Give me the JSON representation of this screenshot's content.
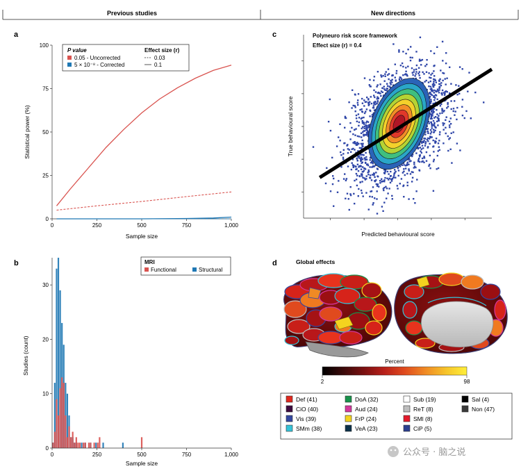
{
  "headers": {
    "left": "Previous studies",
    "right": "New directions"
  },
  "panels": {
    "a": "a",
    "b": "b",
    "c": "c",
    "d": "d"
  },
  "chart_data": [
    {
      "id": "a",
      "type": "line",
      "xlabel": "Sample size",
      "ylabel": "Statistical power (%)",
      "xlim": [
        0,
        1000
      ],
      "ylim": [
        0,
        100
      ],
      "xticks": [
        0,
        250,
        500,
        750,
        1000
      ],
      "xtick_labels": [
        "0",
        "250",
        "500",
        "750",
        "1,000"
      ],
      "yticks": [
        0,
        25,
        50,
        75,
        100
      ],
      "ytick_labels": [
        "0",
        "25",
        "50",
        "75",
        "100"
      ],
      "legend": {
        "pvalue_title": "P value",
        "pvalue_items": [
          {
            "label": "0.05 - Uncorrected",
            "color": "#d9534f"
          },
          {
            "label": "5 × 10⁻⁸ - Corrected",
            "color": "#1f78b4"
          }
        ],
        "effect_title": "Effect size (r)",
        "effect_items": [
          {
            "label": "0.03",
            "style": "dashed"
          },
          {
            "label": "0.1",
            "style": "solid"
          }
        ]
      },
      "series": [
        {
          "name": "0.05 - Uncorrected, r = 0.1",
          "color": "#d9534f",
          "style": "solid",
          "x": [
            25,
            100,
            200,
            300,
            400,
            500,
            600,
            700,
            800,
            900,
            1000
          ],
          "y": [
            7.5,
            17,
            29,
            41,
            51.5,
            61,
            69,
            75.5,
            81,
            85.5,
            88.5
          ]
        },
        {
          "name": "0.05 - Uncorrected, r = 0.03",
          "color": "#d9534f",
          "style": "dashed",
          "x": [
            25,
            250,
            500,
            750,
            1000
          ],
          "y": [
            5,
            7.5,
            10,
            12.8,
            15.5
          ]
        },
        {
          "name": "5 × 10⁻⁸ - Corrected, r = 0.1",
          "color": "#1f78b4",
          "style": "solid",
          "x": [
            25,
            500,
            750,
            900,
            1000
          ],
          "y": [
            0,
            0,
            0.2,
            0.5,
            1
          ]
        },
        {
          "name": "5 × 10⁻⁸ - Corrected, r = 0.03",
          "color": "#1f78b4",
          "style": "dashed",
          "x": [
            25,
            1000
          ],
          "y": [
            0,
            0
          ]
        }
      ]
    },
    {
      "id": "b",
      "type": "bar",
      "xlabel": "Sample size",
      "ylabel": "Studies (count)",
      "xlim": [
        0,
        1000
      ],
      "ylim": [
        0,
        35
      ],
      "xticks": [
        0,
        250,
        500,
        750,
        1000
      ],
      "xtick_labels": [
        "0",
        "250",
        "500",
        "750",
        "1,000"
      ],
      "yticks": [
        0,
        10,
        20,
        30
      ],
      "ytick_labels": [
        "0",
        "10",
        "20",
        "30"
      ],
      "legend_title": "MRI",
      "series": [
        {
          "name": "Functional",
          "color": "#d9534f",
          "x": [
            5,
            15,
            25,
            35,
            45,
            55,
            65,
            75,
            85,
            95,
            105,
            115,
            125,
            135,
            145,
            155,
            175,
            185,
            205,
            215,
            235,
            255,
            265,
            500
          ],
          "y": [
            1,
            3,
            9,
            6,
            11,
            13,
            12,
            6,
            2,
            4,
            2,
            3,
            1,
            2,
            1,
            1,
            1,
            1,
            1,
            1,
            1,
            1,
            2,
            2
          ]
        },
        {
          "name": "Structural",
          "color": "#1f78b4",
          "x": [
            5,
            15,
            25,
            35,
            45,
            55,
            65,
            75,
            85,
            95,
            105,
            115,
            125,
            135,
            165,
            185,
            215,
            245,
            285,
            395
          ],
          "y": [
            1,
            12,
            33,
            35,
            29,
            23,
            19,
            12,
            10,
            6,
            2,
            2,
            1,
            1,
            1,
            1,
            1,
            1,
            1,
            1
          ]
        }
      ]
    },
    {
      "id": "c",
      "type": "scatter",
      "title": "Polyneuro risk score framework",
      "subtitle": "Effect size (r) = 0.4",
      "xlabel": "Predicted behavioural score",
      "ylabel": "True behavioural score",
      "xlim": [
        -3.5,
        3.5
      ],
      "ylim": [
        -3.5,
        3.5
      ],
      "correlation": 0.4,
      "n_points": 2500,
      "regression_line": {
        "x": [
          -3.5,
          3.5
        ],
        "y": [
          -1.4,
          1.4
        ]
      },
      "contour_colors": [
        "#2a63b8",
        "#2aa6c8",
        "#3fbf7f",
        "#b5d334",
        "#f4d12b",
        "#f28c28",
        "#e0382a",
        "#b01626"
      ]
    },
    {
      "id": "d",
      "type": "heatmap",
      "title": "Global effects",
      "colorbar": {
        "label": "Percent",
        "min": "2",
        "max": "98",
        "colors": [
          "#000000",
          "#3a0a0a",
          "#7a1010",
          "#b8201a",
          "#e04b1e",
          "#f08a24",
          "#f6c42a",
          "#ffef3a"
        ]
      },
      "networks": [
        {
          "label": "Def (41)",
          "color": "#e0281e"
        },
        {
          "label": "CiO (40)",
          "color": "#3d0a3e"
        },
        {
          "label": "Vis (39)",
          "color": "#3347a0"
        },
        {
          "label": "SMm (38)",
          "color": "#35c3d8"
        },
        {
          "label": "DoA (32)",
          "color": "#17924a"
        },
        {
          "label": "Aud (24)",
          "color": "#d4379c"
        },
        {
          "label": "FrP (24)",
          "color": "#f4d31f"
        },
        {
          "label": "VeA (23)",
          "color": "#0b3049"
        },
        {
          "label": "Sub (19)",
          "color": "#ffffff"
        },
        {
          "label": "ReT (8)",
          "color": "#bdbdbd"
        },
        {
          "label": "SMl (8)",
          "color": "#e41a2b"
        },
        {
          "label": "CiP (5)",
          "color": "#2b3f8f"
        },
        {
          "label": "Sal (4)",
          "color": "#000000"
        },
        {
          "label": "Non (47)",
          "color": "#3a3a3a"
        }
      ]
    }
  ],
  "watermark": "公众号 · 脑之说"
}
